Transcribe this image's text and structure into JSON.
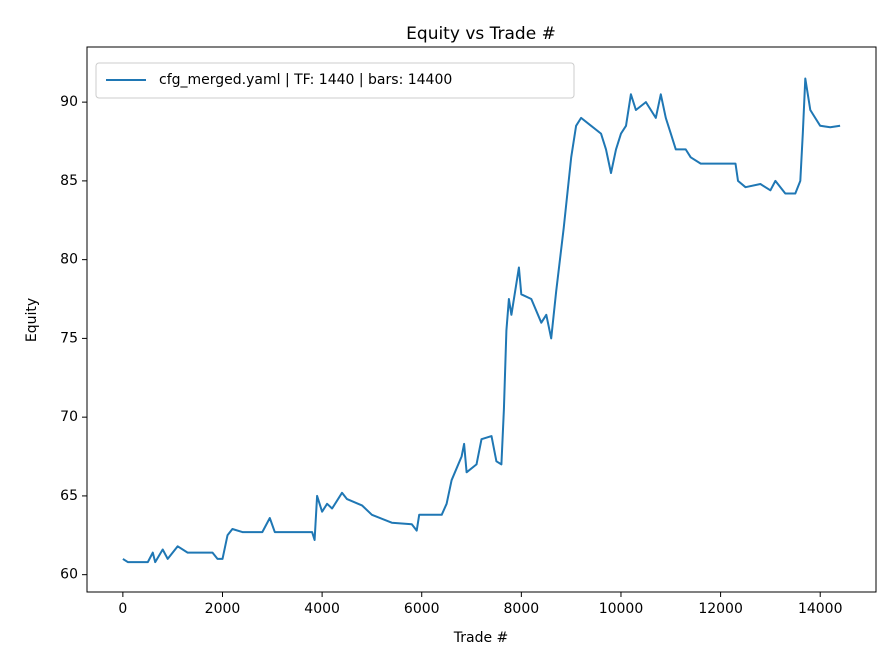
{
  "chart_data": {
    "type": "line",
    "title": "Equity vs Trade #",
    "xlabel": "Trade #",
    "ylabel": "Equity",
    "x": [
      0,
      100,
      500,
      600,
      650,
      800,
      900,
      1100,
      1300,
      1800,
      1900,
      2000,
      2100,
      2200,
      2400,
      2800,
      2950,
      3050,
      3800,
      3850,
      3900,
      4000,
      4100,
      4200,
      4400,
      4500,
      4800,
      5000,
      5400,
      5800,
      5900,
      5950,
      6400,
      6500,
      6600,
      6800,
      6850,
      6900,
      7100,
      7200,
      7400,
      7500,
      7600,
      7650,
      7700,
      7750,
      7800,
      7900,
      7950,
      8000,
      8200,
      8400,
      8500,
      8600,
      8700,
      8850,
      9000,
      9100,
      9200,
      9400,
      9600,
      9700,
      9800,
      9900,
      10000,
      10100,
      10200,
      10300,
      10500,
      10700,
      10800,
      10900,
      11000,
      11100,
      11300,
      11400,
      11600,
      12300,
      12350,
      12500,
      12800,
      13000,
      13100,
      13300,
      13500,
      13600,
      13650,
      13700,
      13800,
      13900,
      14000,
      14200,
      14400
    ],
    "series": [
      {
        "name": "cfg_merged.yaml | TF: 1440 | bars: 14400",
        "color": "#1f77b4",
        "values": [
          61.0,
          60.8,
          60.8,
          61.4,
          60.8,
          61.6,
          61.0,
          61.8,
          61.4,
          61.4,
          61.0,
          61.0,
          62.5,
          62.9,
          62.7,
          62.7,
          63.6,
          62.7,
          62.7,
          62.2,
          65.0,
          64.0,
          64.5,
          64.2,
          65.2,
          64.8,
          64.4,
          63.8,
          63.3,
          63.2,
          62.8,
          63.8,
          63.8,
          64.5,
          66.0,
          67.5,
          68.3,
          66.5,
          67.0,
          68.6,
          68.8,
          67.2,
          67.0,
          70.5,
          75.5,
          77.5,
          76.5,
          78.5,
          79.5,
          77.8,
          77.5,
          76.0,
          76.5,
          75.0,
          78.0,
          82.0,
          86.5,
          88.5,
          89.0,
          88.5,
          88.0,
          87.0,
          85.5,
          87.0,
          88.0,
          88.5,
          90.5,
          89.5,
          90.0,
          89.0,
          90.5,
          89.0,
          88.0,
          87.0,
          87.0,
          86.5,
          86.1,
          86.1,
          85.0,
          84.6,
          84.8,
          84.4,
          85.0,
          84.2,
          84.2,
          85.0,
          88.0,
          91.5,
          89.5,
          89.0,
          88.5,
          88.4,
          88.5
        ]
      }
    ],
    "xlim": [
      -720,
      15120
    ],
    "ylim": [
      58.9,
      93.5
    ],
    "xticks": [
      0,
      2000,
      4000,
      6000,
      8000,
      10000,
      12000,
      14000
    ],
    "yticks": [
      60,
      65,
      70,
      75,
      80,
      85,
      90
    ],
    "legend": "upper left"
  }
}
